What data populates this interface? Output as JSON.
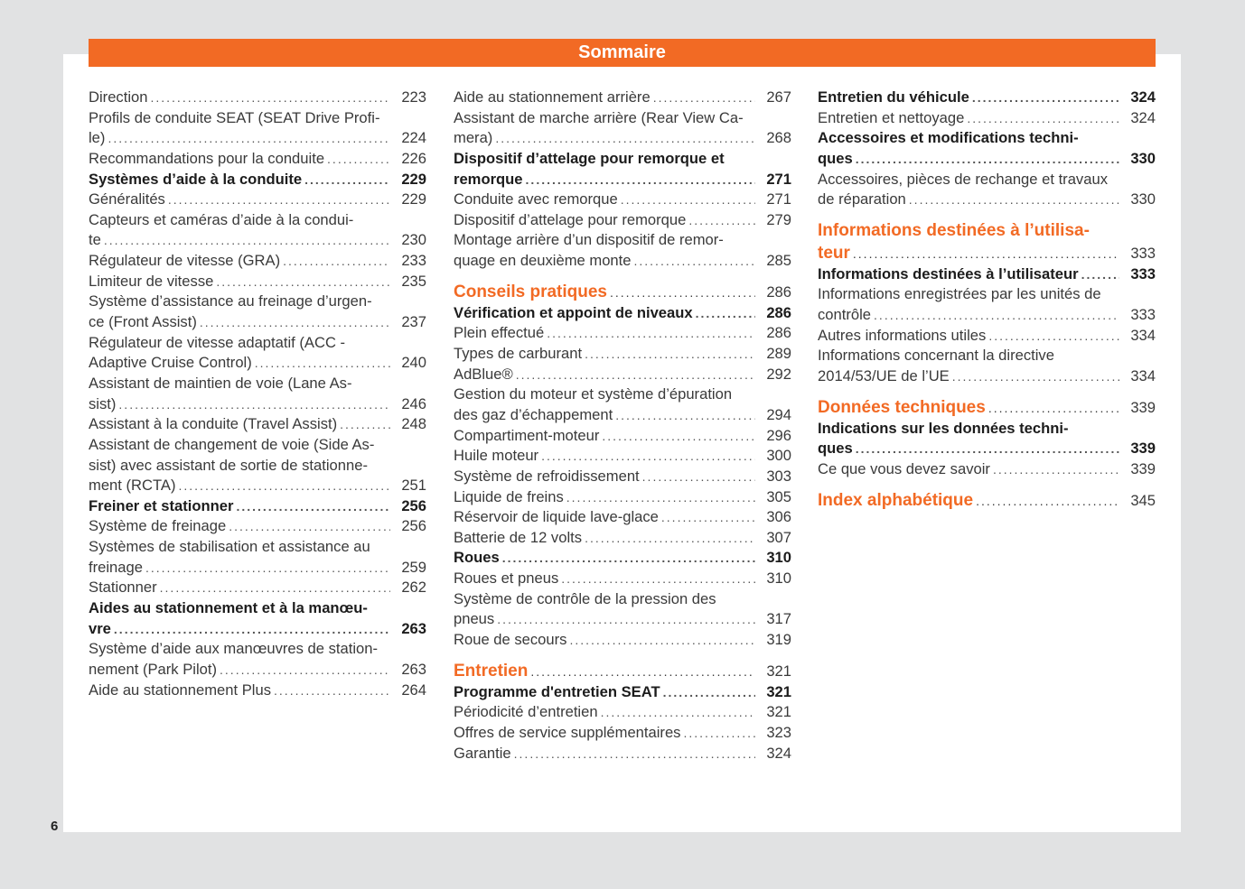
{
  "header": {
    "title": "Sommaire",
    "color": "#f26a24"
  },
  "page_number": "6",
  "columns": [
    [
      {
        "lines": [
          "Direction"
        ],
        "page": "223",
        "style": "normal"
      },
      {
        "lines": [
          "Profils de conduite SEAT (SEAT Drive Profi-",
          "le)"
        ],
        "page": "224",
        "style": "normal"
      },
      {
        "lines": [
          "Recommandations pour la conduite"
        ],
        "page": "226",
        "style": "normal"
      },
      {
        "lines": [
          "Systèmes d’aide à la conduite"
        ],
        "page": "229",
        "style": "bold"
      },
      {
        "lines": [
          "Généralités"
        ],
        "page": "229",
        "style": "normal"
      },
      {
        "lines": [
          "Capteurs et caméras d’aide à la condui-",
          "te"
        ],
        "page": "230",
        "style": "normal"
      },
      {
        "lines": [
          "Régulateur de vitesse (GRA)"
        ],
        "page": "233",
        "style": "normal"
      },
      {
        "lines": [
          "Limiteur de vitesse"
        ],
        "page": "235",
        "style": "normal"
      },
      {
        "lines": [
          "Système d’assistance au freinage d’urgen-",
          "ce (Front Assist)"
        ],
        "page": "237",
        "style": "normal"
      },
      {
        "lines": [
          "Régulateur de vitesse adaptatif (ACC -",
          "Adaptive Cruise Control)"
        ],
        "page": "240",
        "style": "normal"
      },
      {
        "lines": [
          "Assistant de maintien de voie (Lane As-",
          "sist)"
        ],
        "page": "246",
        "style": "normal"
      },
      {
        "lines": [
          "Assistant à la conduite (Travel Assist)"
        ],
        "page": "248",
        "style": "normal"
      },
      {
        "lines": [
          "Assistant de changement de voie (Side As-",
          "sist) avec assistant de sortie de stationne-",
          "ment (RCTA)"
        ],
        "page": "251",
        "style": "normal"
      },
      {
        "lines": [
          "Freiner et stationner"
        ],
        "page": "256",
        "style": "bold"
      },
      {
        "lines": [
          "Système de freinage"
        ],
        "page": "256",
        "style": "normal"
      },
      {
        "lines": [
          "Systèmes de stabilisation et assistance au",
          "freinage"
        ],
        "page": "259",
        "style": "normal"
      },
      {
        "lines": [
          "Stationner"
        ],
        "page": "262",
        "style": "normal"
      },
      {
        "lines": [
          "Aides au stationnement et à la manœu-",
          "vre"
        ],
        "page": "263",
        "style": "bold"
      },
      {
        "lines": [
          "Système d’aide aux manœuvres de station-",
          "nement (Park Pilot)"
        ],
        "page": "263",
        "style": "normal"
      },
      {
        "lines": [
          "Aide au stationnement Plus"
        ],
        "page": "264",
        "style": "normal"
      }
    ],
    [
      {
        "lines": [
          "Aide au stationnement arrière"
        ],
        "page": "267",
        "style": "normal"
      },
      {
        "lines": [
          "Assistant de marche arrière (Rear View Ca-",
          "mera)"
        ],
        "page": "268",
        "style": "normal"
      },
      {
        "lines": [
          "Dispositif d’attelage pour remorque et",
          "remorque"
        ],
        "page": "271",
        "style": "bold"
      },
      {
        "lines": [
          "Conduite avec remorque"
        ],
        "page": "271",
        "style": "normal"
      },
      {
        "lines": [
          "Dispositif d’attelage pour remorque"
        ],
        "page": "279",
        "style": "normal"
      },
      {
        "lines": [
          "Montage arrière d’un dispositif de remor-",
          "quage en deuxième monte"
        ],
        "page": "285",
        "style": "normal"
      },
      {
        "lines": [
          "Conseils pratiques"
        ],
        "page": "286",
        "style": "orange"
      },
      {
        "lines": [
          "Vérification et appoint de niveaux"
        ],
        "page": "286",
        "style": "bold"
      },
      {
        "lines": [
          "Plein effectué"
        ],
        "page": "286",
        "style": "normal"
      },
      {
        "lines": [
          "Types de carburant"
        ],
        "page": "289",
        "style": "normal"
      },
      {
        "lines": [
          "AdBlue®"
        ],
        "page": "292",
        "style": "normal"
      },
      {
        "lines": [
          "Gestion du moteur et système d’épuration",
          "des gaz d’échappement"
        ],
        "page": "294",
        "style": "normal"
      },
      {
        "lines": [
          "Compartiment-moteur"
        ],
        "page": "296",
        "style": "normal"
      },
      {
        "lines": [
          "Huile moteur"
        ],
        "page": "300",
        "style": "normal"
      },
      {
        "lines": [
          "Système de refroidissement"
        ],
        "page": "303",
        "style": "normal"
      },
      {
        "lines": [
          "Liquide de freins"
        ],
        "page": "305",
        "style": "normal"
      },
      {
        "lines": [
          "Réservoir de liquide lave-glace"
        ],
        "page": "306",
        "style": "normal"
      },
      {
        "lines": [
          "Batterie de 12 volts"
        ],
        "page": "307",
        "style": "normal"
      },
      {
        "lines": [
          "Roues"
        ],
        "page": "310",
        "style": "bold"
      },
      {
        "lines": [
          "Roues et pneus"
        ],
        "page": "310",
        "style": "normal"
      },
      {
        "lines": [
          "Système de contrôle de la pression des",
          "pneus"
        ],
        "page": "317",
        "style": "normal"
      },
      {
        "lines": [
          "Roue de secours"
        ],
        "page": "319",
        "style": "normal"
      },
      {
        "lines": [
          "Entretien"
        ],
        "page": "321",
        "style": "orange"
      },
      {
        "lines": [
          "Programme d'entretien SEAT"
        ],
        "page": "321",
        "style": "bold"
      },
      {
        "lines": [
          "Périodicité d’entretien"
        ],
        "page": "321",
        "style": "normal"
      },
      {
        "lines": [
          "Offres de service supplémentaires"
        ],
        "page": "323",
        "style": "normal"
      },
      {
        "lines": [
          "Garantie"
        ],
        "page": "324",
        "style": "normal"
      }
    ],
    [
      {
        "lines": [
          "Entretien du véhicule"
        ],
        "page": "324",
        "style": "bold"
      },
      {
        "lines": [
          "Entretien et nettoyage"
        ],
        "page": "324",
        "style": "normal"
      },
      {
        "lines": [
          "Accessoires et modifications techni-",
          "ques"
        ],
        "page": "330",
        "style": "bold"
      },
      {
        "lines": [
          "Accessoires, pièces de rechange et travaux",
          "de réparation"
        ],
        "page": "330",
        "style": "normal"
      },
      {
        "lines": [
          "Informations destinées à l’utilisa-",
          "teur"
        ],
        "page": "333",
        "style": "orange"
      },
      {
        "lines": [
          "Informations destinées à l’utilisateur"
        ],
        "page": "333",
        "style": "bold"
      },
      {
        "lines": [
          "Informations enregistrées par les unités de",
          "contrôle"
        ],
        "page": "333",
        "style": "normal"
      },
      {
        "lines": [
          "Autres informations utiles"
        ],
        "page": "334",
        "style": "normal"
      },
      {
        "lines": [
          "Informations concernant la directive",
          "2014/53/UE de l’UE"
        ],
        "page": "334",
        "style": "normal"
      },
      {
        "lines": [
          "Données techniques"
        ],
        "page": "339",
        "style": "orange"
      },
      {
        "lines": [
          "Indications sur les données techni-",
          "ques"
        ],
        "page": "339",
        "style": "bold"
      },
      {
        "lines": [
          "Ce que vous devez savoir"
        ],
        "page": "339",
        "style": "normal"
      },
      {
        "lines": [
          "Index alphabétique"
        ],
        "page": "345",
        "style": "orange"
      }
    ]
  ]
}
